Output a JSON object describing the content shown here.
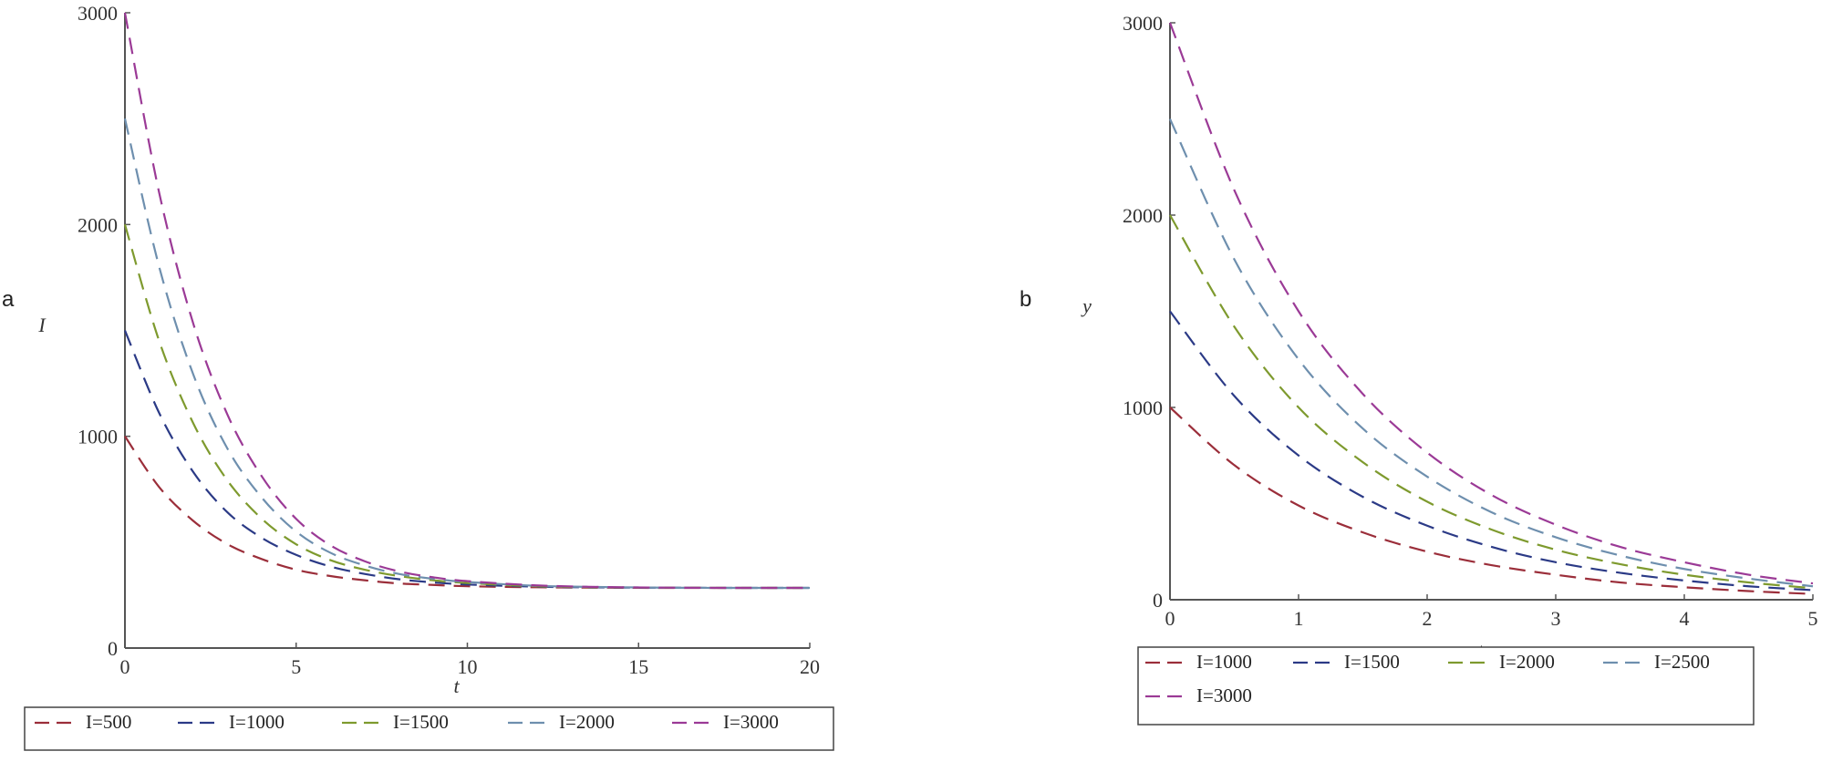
{
  "panel_labels": [
    "a",
    "b"
  ],
  "chart_data": [
    {
      "type": "line",
      "title": "",
      "xlabel": "t",
      "ylabel": "I",
      "xlim": [
        0,
        20
      ],
      "ylim": [
        0,
        3000
      ],
      "xticks": [
        0,
        5,
        10,
        15,
        20
      ],
      "yticks": [
        0,
        1000,
        2000,
        3000
      ],
      "grid": false,
      "legend_placement": "bottom",
      "line_style": "dashed",
      "x": [
        0,
        1,
        2,
        3,
        4,
        5,
        6,
        7,
        8,
        9,
        10,
        12,
        14,
        16,
        18,
        20
      ],
      "series": [
        {
          "name": "I=500",
          "color": "#9b2e3a",
          "values": [
            1000,
            760,
            600,
            490,
            420,
            370,
            340,
            320,
            305,
            298,
            292,
            287,
            285,
            284,
            284,
            284
          ]
        },
        {
          "name": "I=1000",
          "color": "#2b3a86",
          "values": [
            1500,
            1110,
            830,
            640,
            520,
            440,
            385,
            350,
            325,
            310,
            300,
            290,
            286,
            285,
            284,
            284
          ]
        },
        {
          "name": "I=1500",
          "color": "#7e9a2e",
          "values": [
            2000,
            1450,
            1060,
            790,
            610,
            490,
            415,
            370,
            340,
            320,
            307,
            292,
            287,
            285,
            284,
            284
          ]
        },
        {
          "name": "I=2000",
          "color": "#6e8fae",
          "values": [
            2500,
            1800,
            1290,
            940,
            710,
            550,
            450,
            390,
            350,
            327,
            312,
            294,
            288,
            285,
            284,
            284
          ]
        },
        {
          "name": "I=3000",
          "color": "#9b3a96",
          "values": [
            3000,
            2150,
            1530,
            1100,
            810,
            610,
            485,
            410,
            362,
            334,
            316,
            296,
            288,
            285,
            284,
            284
          ]
        }
      ]
    },
    {
      "type": "line",
      "title": "",
      "xlabel": "t",
      "ylabel": "y",
      "xlim": [
        0,
        5
      ],
      "ylim": [
        0,
        3000
      ],
      "xticks": [
        0,
        1,
        2,
        3,
        4,
        5
      ],
      "yticks": [
        0,
        1000,
        2000,
        3000
      ],
      "grid": false,
      "legend_placement": "bottom",
      "line_style": "dashed",
      "x": [
        0,
        0.5,
        1,
        1.5,
        2,
        2.5,
        3,
        3.5,
        4,
        4.5,
        5
      ],
      "series": [
        {
          "name": "I=1000",
          "color": "#9b2e3a",
          "values": [
            1000,
            700,
            490,
            350,
            250,
            180,
            130,
            90,
            65,
            45,
            30
          ]
        },
        {
          "name": "I=1500",
          "color": "#2b3a86",
          "values": [
            1500,
            1060,
            750,
            535,
            385,
            275,
            195,
            140,
            100,
            70,
            50
          ]
        },
        {
          "name": "I=2000",
          "color": "#7e9a2e",
          "values": [
            2000,
            1420,
            1000,
            715,
            510,
            365,
            260,
            185,
            130,
            90,
            60
          ]
        },
        {
          "name": "I=2500",
          "color": "#6e8fae",
          "values": [
            2500,
            1770,
            1250,
            890,
            640,
            455,
            325,
            230,
            160,
            110,
            70
          ]
        },
        {
          "name": "I=3000",
          "color": "#9b3a96",
          "values": [
            3000,
            2130,
            1500,
            1070,
            765,
            545,
            390,
            275,
            195,
            130,
            85
          ]
        }
      ]
    }
  ]
}
